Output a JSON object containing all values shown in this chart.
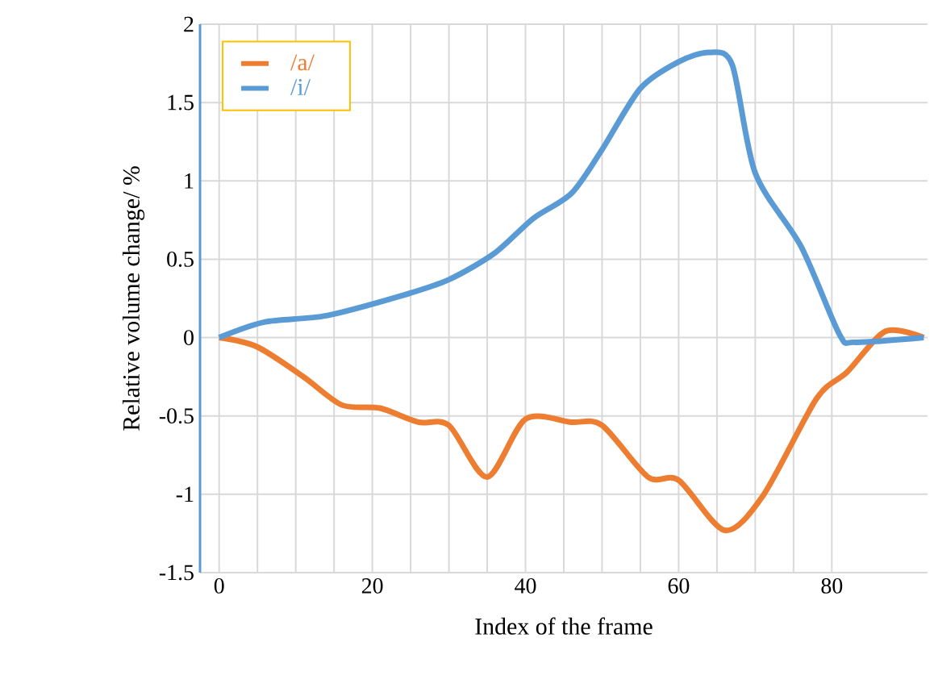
{
  "chart_data": {
    "type": "line",
    "xlabel": "Index of the frame",
    "ylabel": "Relative volume change/ %",
    "xlim": [
      -2.5,
      92.5
    ],
    "xticks": [
      0,
      20,
      40,
      60,
      80
    ],
    "ylim": [
      -1.5,
      2
    ],
    "yticks": [
      -1.5,
      -1,
      -0.5,
      0,
      0.5,
      1,
      1.5,
      2
    ],
    "grid": true,
    "legend": "top left",
    "marker": "none",
    "line_style": "solid",
    "series": [
      {
        "name": "/a/",
        "color": "#ed7d31",
        "x": [
          0,
          5,
          11,
          16,
          21,
          26,
          30,
          35,
          40,
          46,
          50,
          56,
          60,
          66,
          71,
          78,
          82,
          87,
          92
        ],
        "values": [
          0,
          -0.06,
          -0.25,
          -0.43,
          -0.45,
          -0.54,
          -0.56,
          -0.89,
          -0.52,
          -0.54,
          -0.56,
          -0.89,
          -0.91,
          -1.23,
          -1.01,
          -0.39,
          -0.22,
          0.04,
          0
        ]
      },
      {
        "name": "/i/",
        "color": "#5b9bd5",
        "x": [
          0,
          6,
          14,
          24,
          30,
          36,
          41,
          46,
          50,
          55,
          60,
          64,
          67,
          70,
          76,
          81,
          83,
          92
        ],
        "values": [
          0,
          0.1,
          0.14,
          0.27,
          0.37,
          0.54,
          0.76,
          0.92,
          1.2,
          1.59,
          1.76,
          1.82,
          1.74,
          1.05,
          0.58,
          0.02,
          -0.03,
          0
        ]
      }
    ]
  }
}
